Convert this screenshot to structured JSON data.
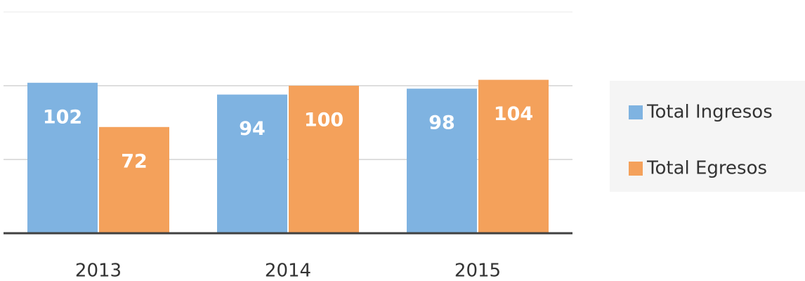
{
  "chart_data": {
    "type": "bar",
    "categories": [
      "2013",
      "2014",
      "2015"
    ],
    "series": [
      {
        "name": "Total Ingresos",
        "color": "#7fb3e1",
        "values": [
          102,
          94,
          98
        ]
      },
      {
        "name": "Total Egresos",
        "color": "#f4a15b",
        "values": [
          72,
          100,
          104
        ]
      }
    ],
    "ylim": [
      0,
      150
    ],
    "yticks": [
      0,
      50,
      100,
      150
    ],
    "grid": true,
    "legend": "right"
  }
}
